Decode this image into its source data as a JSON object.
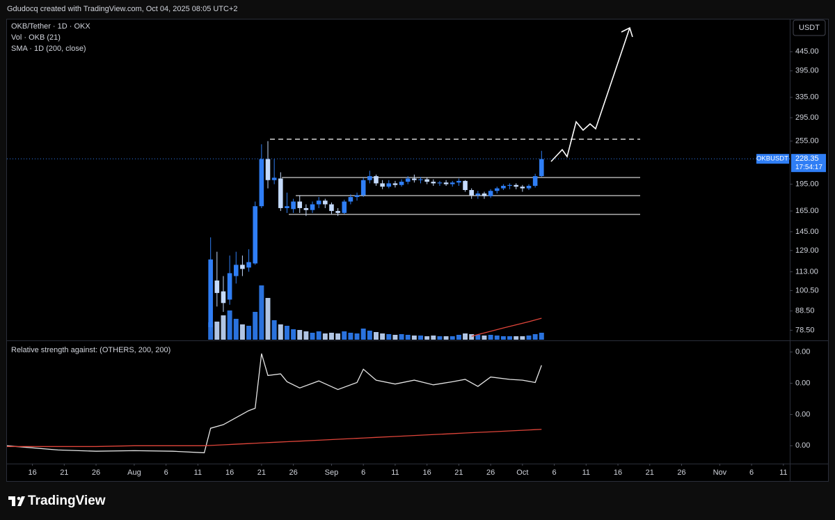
{
  "header": "Gdudocq created with TradingView.com, Oct 04, 2025 08:05 UTC+2",
  "footer_logo": "TradingView",
  "chart_data": [
    {
      "type": "candlestick",
      "legend": [
        "OKB/Tether · 1D · OKX",
        "Vol · OKB (21)",
        "SMA · 1D (200, close)"
      ],
      "currency": "USDT",
      "symbol": "OKBUSDT",
      "last_price": 228.35,
      "countdown": "17:54:17",
      "up_color": "#2f7ef5",
      "down_color": "#c4dafc",
      "sma_color": "#e0453a",
      "log_scale": true,
      "xlim": [
        "2025-07-12",
        "2025-11-12"
      ],
      "xticks": [
        {
          "value": "2025-07-16",
          "label": "16"
        },
        {
          "value": "2025-07-21",
          "label": "21"
        },
        {
          "value": "2025-07-26",
          "label": "26"
        },
        {
          "value": "2025-08-01",
          "label": "Aug"
        },
        {
          "value": "2025-08-06",
          "label": "6"
        },
        {
          "value": "2025-08-11",
          "label": "11"
        },
        {
          "value": "2025-08-16",
          "label": "16"
        },
        {
          "value": "2025-08-21",
          "label": "21"
        },
        {
          "value": "2025-08-26",
          "label": "26"
        },
        {
          "value": "2025-09-01",
          "label": "Sep"
        },
        {
          "value": "2025-09-06",
          "label": "6"
        },
        {
          "value": "2025-09-11",
          "label": "11"
        },
        {
          "value": "2025-09-16",
          "label": "16"
        },
        {
          "value": "2025-09-21",
          "label": "21"
        },
        {
          "value": "2025-09-26",
          "label": "26"
        },
        {
          "value": "2025-10-01",
          "label": "Oct"
        },
        {
          "value": "2025-10-06",
          "label": "6"
        },
        {
          "value": "2025-10-11",
          "label": "11"
        },
        {
          "value": "2025-10-16",
          "label": "16"
        },
        {
          "value": "2025-10-21",
          "label": "21"
        },
        {
          "value": "2025-10-26",
          "label": "26"
        },
        {
          "value": "2025-11-01",
          "label": "Nov"
        },
        {
          "value": "2025-11-06",
          "label": "6"
        },
        {
          "value": "2025-11-11",
          "label": "11"
        }
      ],
      "ylim": [
        74,
        544
      ],
      "yticks": [
        {
          "value": 445,
          "label": "445.00"
        },
        {
          "value": 395,
          "label": "395.00"
        },
        {
          "value": 335,
          "label": "335.00"
        },
        {
          "value": 295,
          "label": "295.00"
        },
        {
          "value": 255,
          "label": "255.00"
        },
        {
          "value": 195,
          "label": "195.00"
        },
        {
          "value": 165,
          "label": "165.00"
        },
        {
          "value": 145,
          "label": "145.00"
        },
        {
          "value": 129,
          "label": "129.00"
        },
        {
          "value": 113,
          "label": "113.00"
        },
        {
          "value": 100.5,
          "label": "100.50"
        },
        {
          "value": 88.5,
          "label": "88.50"
        },
        {
          "value": 78.5,
          "label": "78.50"
        }
      ],
      "x": [
        "2025-08-13",
        "2025-08-14",
        "2025-08-15",
        "2025-08-16",
        "2025-08-17",
        "2025-08-18",
        "2025-08-19",
        "2025-08-20",
        "2025-08-21",
        "2025-08-22",
        "2025-08-23",
        "2025-08-24",
        "2025-08-25",
        "2025-08-26",
        "2025-08-27",
        "2025-08-28",
        "2025-08-29",
        "2025-08-30",
        "2025-08-31",
        "2025-09-01",
        "2025-09-02",
        "2025-09-03",
        "2025-09-04",
        "2025-09-05",
        "2025-09-06",
        "2025-09-07",
        "2025-09-08",
        "2025-09-09",
        "2025-09-10",
        "2025-09-11",
        "2025-09-12",
        "2025-09-13",
        "2025-09-14",
        "2025-09-15",
        "2025-09-16",
        "2025-09-17",
        "2025-09-18",
        "2025-09-19",
        "2025-09-20",
        "2025-09-21",
        "2025-09-22",
        "2025-09-23",
        "2025-09-24",
        "2025-09-25",
        "2025-09-26",
        "2025-09-27",
        "2025-09-28",
        "2025-09-29",
        "2025-09-30",
        "2025-10-01",
        "2025-10-02",
        "2025-10-03",
        "2025-10-04"
      ],
      "open": [
        80,
        107,
        100,
        95,
        110,
        118,
        116,
        119,
        170,
        228,
        200,
        202,
        168,
        167,
        175,
        168,
        166,
        172,
        176,
        172,
        165,
        163,
        175,
        180,
        182,
        200,
        205,
        196,
        192,
        196,
        194,
        198,
        202,
        200,
        201,
        198,
        196,
        197,
        195,
        197,
        199,
        188,
        182,
        184,
        181,
        187,
        190,
        193,
        194,
        192,
        190,
        193,
        205
      ],
      "high": [
        140,
        128,
        110,
        125,
        128,
        125,
        130,
        175,
        250,
        255,
        228,
        210,
        185,
        178,
        182,
        172,
        175,
        180,
        178,
        174,
        168,
        177,
        183,
        185,
        203,
        212,
        207,
        200,
        200,
        199,
        201,
        205,
        207,
        204,
        203,
        201,
        199,
        200,
        199,
        202,
        200,
        190,
        187,
        186,
        189,
        192,
        195,
        196,
        196,
        194,
        195,
        208,
        240
      ],
      "low": [
        78,
        91,
        88,
        92,
        105,
        110,
        113,
        118,
        168,
        190,
        195,
        165,
        163,
        163,
        163,
        160,
        163,
        168,
        168,
        162,
        160,
        162,
        172,
        176,
        180,
        196,
        193,
        189,
        190,
        191,
        192,
        195,
        197,
        196,
        195,
        193,
        193,
        193,
        192,
        193,
        186,
        178,
        178,
        178,
        179,
        184,
        188,
        189,
        189,
        186,
        188,
        191,
        204
      ],
      "close": [
        122,
        99,
        93,
        112,
        118,
        115,
        120,
        170,
        228,
        200,
        203,
        168,
        170,
        175,
        168,
        166,
        172,
        176,
        172,
        165,
        163,
        175,
        180,
        182,
        200,
        205,
        196,
        192,
        196,
        194,
        198,
        202,
        200,
        201,
        198,
        196,
        197,
        195,
        197,
        199,
        188,
        182,
        184,
        181,
        187,
        190,
        193,
        194,
        192,
        190,
        193,
        205,
        228
      ],
      "volume": [
        25,
        26,
        35,
        42,
        30,
        22,
        20,
        40,
        78,
        60,
        28,
        22,
        20,
        15,
        14,
        12,
        10,
        12,
        9,
        10,
        9,
        12,
        10,
        9,
        16,
        13,
        11,
        9,
        8,
        7,
        8,
        7,
        6,
        6,
        5,
        6,
        5,
        5,
        5,
        7,
        9,
        8,
        7,
        6,
        7,
        6,
        5,
        5,
        5,
        5,
        6,
        8,
        10
      ],
      "sma": [
        null,
        null,
        null,
        null,
        null,
        null,
        null,
        null,
        null,
        null,
        null,
        null,
        null,
        null,
        null,
        null,
        null,
        null,
        null,
        null,
        null,
        null,
        null,
        null,
        null,
        null,
        null,
        null,
        null,
        null,
        null,
        null,
        null,
        null,
        null,
        null,
        null,
        null,
        null,
        null,
        null,
        75.6,
        76.4,
        77.2,
        78.0,
        78.8,
        79.6,
        80.4,
        81.2,
        82.0,
        82.8,
        83.7,
        84.6
      ]
    },
    {
      "type": "line",
      "title": "Relative strength against: (OTHERS, 200, 200)",
      "x": [
        "2025-07-12",
        "2025-07-20",
        "2025-07-26",
        "2025-08-01",
        "2025-08-07",
        "2025-08-12",
        "2025-08-13",
        "2025-08-15",
        "2025-08-17",
        "2025-08-19",
        "2025-08-20",
        "2025-08-21",
        "2025-08-22",
        "2025-08-24",
        "2025-08-25",
        "2025-08-27",
        "2025-08-30",
        "2025-09-02",
        "2025-09-05",
        "2025-09-06",
        "2025-09-08",
        "2025-09-11",
        "2025-09-14",
        "2025-09-17",
        "2025-09-20",
        "2025-09-22",
        "2025-09-24",
        "2025-09-26",
        "2025-09-29",
        "2025-10-01",
        "2025-10-03",
        "2025-10-04"
      ],
      "series": [
        {
          "color": "#e6e6e6",
          "values": [
            0.0004,
            0.000346,
            0.00033,
            0.000337,
            0.00033,
            0.00031,
            0.000624,
            0.00067,
            0.00076,
            0.00085,
            0.00088,
            0.00158,
            0.0013,
            0.00132,
            0.00122,
            0.00114,
            0.00123,
            0.00112,
            0.00121,
            0.00138,
            0.00124,
            0.00119,
            0.00124,
            0.00118,
            0.00122,
            0.00125,
            0.00116,
            0.00128,
            0.00125,
            0.00124,
            0.00121,
            0.00143
          ]
        },
        {
          "color": "#e0453a",
          "values": [
            0.00039,
            0.00039,
            0.00039,
            0.0004,
            0.0004,
            0.0004,
            0.000404,
            0.000412,
            0.00042,
            0.000428,
            0.000432,
            0.000436,
            0.00044,
            0.000448,
            0.000452,
            0.000459,
            0.000471,
            0.000483,
            0.000495,
            0.000499,
            0.000507,
            0.000519,
            0.000531,
            0.000543,
            0.000555,
            0.000563,
            0.000571,
            0.000578,
            0.00059,
            0.000598,
            0.000606,
            0.00061
          ]
        }
      ],
      "ylim": [
        0.00018,
        0.00174
      ],
      "yticks": [
        {
          "value": 0.0016,
          "label": "0.00"
        },
        {
          "value": 0.0012,
          "label": "0.00"
        },
        {
          "value": 0.0008,
          "label": "0.00"
        },
        {
          "value": 0.0004,
          "label": "0.00"
        }
      ]
    }
  ]
}
